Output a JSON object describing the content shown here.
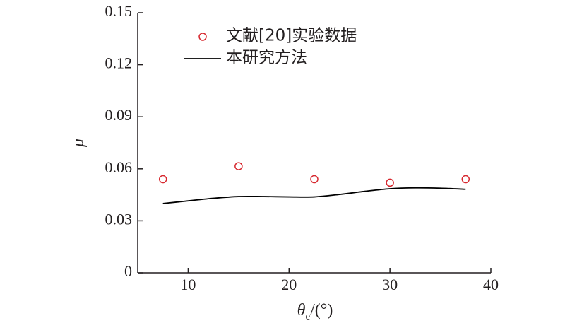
{
  "chart_data": {
    "type": "scatter",
    "xlabel_symbol": "θ",
    "xlabel_subscript": "e",
    "xlabel_unit": "/(°)",
    "ylabel": "μ",
    "xlim": [
      5,
      40
    ],
    "ylim": [
      0,
      0.15
    ],
    "xticks": [
      10,
      20,
      30,
      40
    ],
    "xtick_labels": [
      "10",
      "20",
      "30",
      "40"
    ],
    "yticks": [
      0,
      0.03,
      0.06,
      0.09,
      0.12,
      0.15
    ],
    "ytick_labels": [
      "0",
      "0.03",
      "0.06",
      "0.09",
      "0.12",
      "0.15"
    ],
    "grid": false,
    "legend_position": "top-left",
    "series": [
      {
        "name": "文献[20]实验数据",
        "type": "scatter",
        "marker": "open-circle",
        "color": "#d7282f",
        "x": [
          7.5,
          15,
          22.5,
          30,
          37.5
        ],
        "y": [
          0.054,
          0.0615,
          0.054,
          0.052,
          0.054
        ]
      },
      {
        "name": "本研究方法",
        "type": "line",
        "color": "#000000",
        "x": [
          7.5,
          10,
          12.5,
          15,
          17.5,
          20,
          22.5,
          25,
          27.5,
          30,
          32.5,
          35,
          37.5
        ],
        "y": [
          0.04,
          0.0415,
          0.043,
          0.044,
          0.044,
          0.0438,
          0.0438,
          0.0452,
          0.047,
          0.0485,
          0.049,
          0.0488,
          0.0482
        ]
      }
    ]
  }
}
